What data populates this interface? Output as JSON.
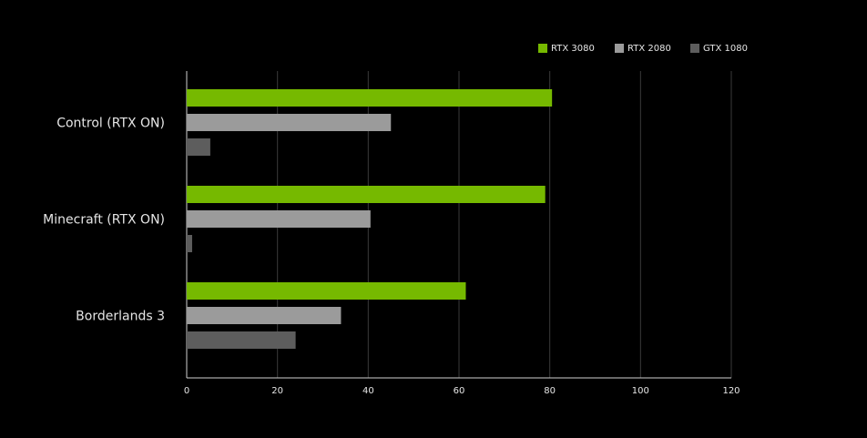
{
  "chart_data": {
    "type": "bar",
    "orientation": "horizontal",
    "title": "",
    "xlabel": "",
    "ylabel": "",
    "xlim": [
      0,
      120
    ],
    "x_ticks": [
      0,
      20,
      40,
      60,
      80,
      100,
      120
    ],
    "categories": [
      "Control (RTX ON)",
      "Minecraft (RTX ON)",
      "Borderlands 3"
    ],
    "series": [
      {
        "name": "RTX 3080",
        "color": "#76b900",
        "values": [
          80.5,
          79,
          61.5
        ]
      },
      {
        "name": "RTX 2080",
        "color": "#9b9b9b",
        "values": [
          45,
          40.5,
          34
        ]
      },
      {
        "name": "GTX 1080",
        "color": "#5d5d5d",
        "values": [
          5.2,
          1.2,
          24
        ]
      }
    ],
    "grid": "vertical",
    "legend_position": "top-right"
  }
}
